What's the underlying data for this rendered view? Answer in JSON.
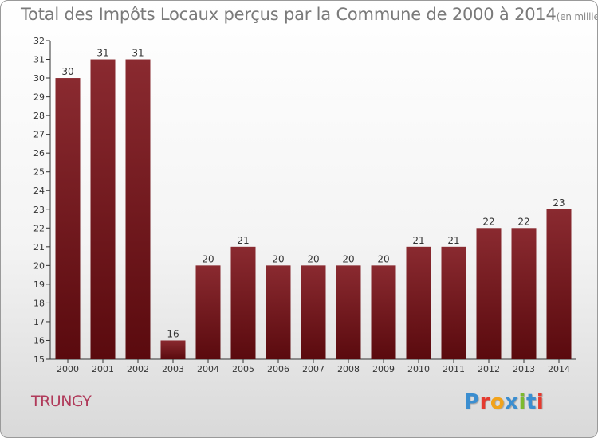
{
  "title": "Total des Impôts Locaux perçus par la Commune de 2000 à 2014",
  "title_unit": "(en milliers d'€)",
  "commune": "TRUNGY",
  "logo": {
    "letters": [
      "P",
      "r",
      "o",
      "x",
      "i",
      "t",
      "i"
    ],
    "colors": [
      "#3b8ed0",
      "#e53a2f",
      "#f2a31b",
      "#3b8ed0",
      "#7cba2f",
      "#3b8ed0",
      "#e53a2f"
    ]
  },
  "colors": {
    "bar": "#7a1a1f",
    "bar_dark": "#5a0a0e",
    "axis": "#333333",
    "grid": "#cccccc"
  },
  "chart_data": {
    "type": "bar",
    "title": "Total des Impôts Locaux perçus par la Commune de 2000 à 2014",
    "xlabel": "",
    "ylabel": "",
    "categories": [
      "2000",
      "2001",
      "2002",
      "2003",
      "2004",
      "2005",
      "2006",
      "2007",
      "2008",
      "2009",
      "2010",
      "2011",
      "2012",
      "2013",
      "2014"
    ],
    "values": [
      30,
      31,
      31,
      16,
      20,
      21,
      20,
      20,
      20,
      20,
      21,
      21,
      22,
      22,
      23
    ],
    "ylim": [
      15,
      32
    ],
    "yticks": [
      15,
      16,
      17,
      18,
      19,
      20,
      21,
      22,
      23,
      24,
      25,
      26,
      27,
      28,
      29,
      30,
      31,
      32
    ],
    "grid": false,
    "data_labels": true
  }
}
